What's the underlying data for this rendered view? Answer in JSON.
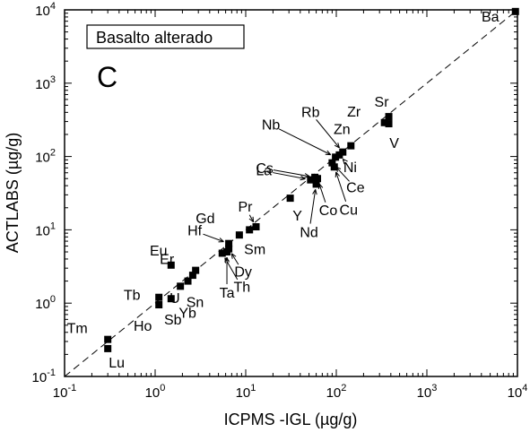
{
  "chart_data": {
    "type": "scatter",
    "title": "",
    "xlabel": "ICPMS -IGL (µg/g)",
    "ylabel": "ACTLABS (µg/g)",
    "x_scale": "log",
    "y_scale": "log",
    "xlim": [
      0.1,
      10000
    ],
    "ylim": [
      0.1,
      10000
    ],
    "x_ticks": [
      {
        "base": "10",
        "exp": "-1"
      },
      {
        "base": "10",
        "exp": "0"
      },
      {
        "base": "10",
        "exp": "1"
      },
      {
        "base": "10",
        "exp": "2"
      },
      {
        "base": "10",
        "exp": "3"
      },
      {
        "base": "10",
        "exp": "4"
      }
    ],
    "y_ticks": [
      {
        "base": "10",
        "exp": "-1"
      },
      {
        "base": "10",
        "exp": "0"
      },
      {
        "base": "10",
        "exp": "1"
      },
      {
        "base": "10",
        "exp": "2"
      },
      {
        "base": "10",
        "exp": "3"
      },
      {
        "base": "10",
        "exp": "4"
      }
    ],
    "grid": false,
    "legend_box": "Basalto alterado",
    "panel_label": "C",
    "reference_line": "1:1",
    "points": [
      {
        "label": "Ba",
        "x": 9500,
        "y": 9500
      },
      {
        "label": "Sr",
        "x": 380,
        "y": 350
      },
      {
        "label": "Zr",
        "x": 340,
        "y": 290
      },
      {
        "label": "V",
        "x": 380,
        "y": 280
      },
      {
        "label": "Zn",
        "x": 145,
        "y": 140
      },
      {
        "label": "Rb",
        "x": 118,
        "y": 115
      },
      {
        "label": "Ni",
        "x": 108,
        "y": 105
      },
      {
        "label": "Nb",
        "x": 98,
        "y": 98
      },
      {
        "label": "Ce",
        "x": 90,
        "y": 82
      },
      {
        "label": "Cu",
        "x": 95,
        "y": 72
      },
      {
        "label": "Cs",
        "x": 58,
        "y": 52
      },
      {
        "label": "La",
        "x": 52,
        "y": 48
      },
      {
        "label": "Co",
        "x": 62,
        "y": 50
      },
      {
        "label": "Nd",
        "x": 60,
        "y": 42
      },
      {
        "label": "Y",
        "x": 31,
        "y": 27
      },
      {
        "label": "Pr",
        "x": 13,
        "y": 11
      },
      {
        "label": "Sm",
        "x": 11,
        "y": 10
      },
      {
        "label": "Gd",
        "x": 8.5,
        "y": 8.5
      },
      {
        "label": "Hf",
        "x": 6.5,
        "y": 6.5
      },
      {
        "label": "Dy",
        "x": 6.5,
        "y": 5.5
      },
      {
        "label": "Ta",
        "x": 6.2,
        "y": 5.0
      },
      {
        "label": "Th",
        "x": 5.5,
        "y": 4.8
      },
      {
        "label": "Eu",
        "x": 1.5,
        "y": 3.3
      },
      {
        "label": "Er",
        "x": 2.8,
        "y": 2.8
      },
      {
        "label": "U",
        "x": 2.6,
        "y": 2.4
      },
      {
        "label": "Sn",
        "x": 2.3,
        "y": 2.0
      },
      {
        "label": "Yb",
        "x": 1.9,
        "y": 1.7
      },
      {
        "label": "Tb",
        "x": 1.1,
        "y": 1.2
      },
      {
        "label": "Ho",
        "x": 1.1,
        "y": 0.95
      },
      {
        "label": "Sb",
        "x": 1.5,
        "y": 1.15
      },
      {
        "label": "Tm",
        "x": 0.3,
        "y": 0.32
      },
      {
        "label": "Lu",
        "x": 0.3,
        "y": 0.24
      }
    ]
  }
}
